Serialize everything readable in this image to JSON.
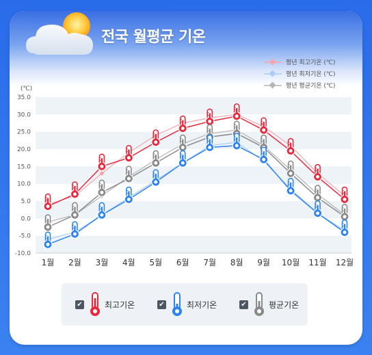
{
  "title": "전국 월평균 기온",
  "unit_label": "(℃)",
  "colors": {
    "max": "#e8293d",
    "min": "#2d83f0",
    "avg": "#8a8a8a",
    "max_normal": "#f5a5ad",
    "min_normal": "#a9cdf5",
    "avg_normal": "#b5b5b5"
  },
  "top_legend": [
    {
      "label": "평년 최고기온 (℃)",
      "color": "#f5a5ad"
    },
    {
      "label": "평년 최저기온 (℃)",
      "color": "#a9cdf5"
    },
    {
      "label": "평년 평균기온 (℃)",
      "color": "#b5b5b5"
    }
  ],
  "bottom_legend": [
    {
      "label": "최고기온",
      "icon": "thermometer-red-icon",
      "checked": true
    },
    {
      "label": "최저기온",
      "icon": "thermometer-blue-icon",
      "checked": true
    },
    {
      "label": "평균기온",
      "icon": "thermometer-gray-icon",
      "checked": true
    }
  ],
  "chart_data": {
    "type": "line",
    "categories": [
      "1월",
      "2월",
      "3월",
      "4월",
      "5월",
      "6월",
      "7월",
      "8월",
      "9월",
      "10월",
      "11월",
      "12월"
    ],
    "ylim": [
      -10,
      35
    ],
    "yticks": [
      "35.0",
      "30.0",
      "25.0",
      "20.0",
      "15.0",
      "10.0",
      "5.0",
      "0.0",
      "-5.0",
      "-10.0"
    ],
    "grid": "horizontal bands",
    "legend_position": "top-right",
    "series": [
      {
        "name": "최고기온",
        "values": [
          3.5,
          7.0,
          15.0,
          17.5,
          22.0,
          26.0,
          28.0,
          29.5,
          25.5,
          19.5,
          12.0,
          5.5
        ]
      },
      {
        "name": "최저기온",
        "values": [
          -7.5,
          -4.5,
          1.0,
          5.5,
          10.5,
          16.0,
          20.5,
          21.0,
          17.0,
          8.0,
          1.5,
          -4.0
        ]
      },
      {
        "name": "평균기온",
        "values": [
          -2.5,
          1.0,
          7.5,
          11.5,
          16.0,
          20.5,
          23.5,
          24.5,
          20.5,
          13.0,
          6.0,
          0.5
        ]
      },
      {
        "name": "평년 최고기온 (℃)",
        "values": [
          4.0,
          6.5,
          13.0,
          19.0,
          24.0,
          27.5,
          29.0,
          30.0,
          26.5,
          21.0,
          13.0,
          6.5
        ]
      },
      {
        "name": "평년 최저기온 (℃)",
        "values": [
          -6.0,
          -4.0,
          1.0,
          6.0,
          11.0,
          16.0,
          21.0,
          22.0,
          16.5,
          8.5,
          1.5,
          -3.5
        ]
      },
      {
        "name": "평년 평균기온 (℃)",
        "values": [
          -1.0,
          1.0,
          6.5,
          12.0,
          17.0,
          21.5,
          24.5,
          25.5,
          21.0,
          14.0,
          7.0,
          1.0
        ]
      }
    ]
  }
}
